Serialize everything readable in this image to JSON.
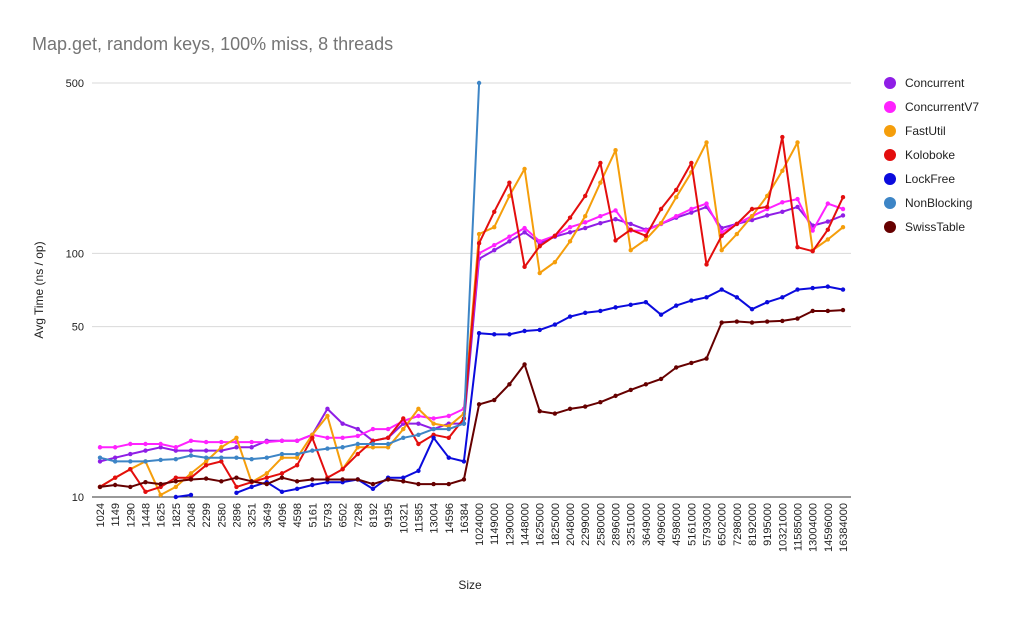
{
  "chart_data": {
    "type": "line",
    "title": "Map.get, random keys, 100% miss, 8 threads",
    "xlabel": "Size",
    "ylabel": "Avg Time (ns / op)",
    "y_scale": "log",
    "ylim": [
      10,
      500
    ],
    "y_ticks": [
      10,
      50,
      100,
      500
    ],
    "grid": "horizontal",
    "legend_position": "right",
    "categories": [
      "1024",
      "1149",
      "1290",
      "1448",
      "1625",
      "1825",
      "2048",
      "2299",
      "2580",
      "2896",
      "3251",
      "3649",
      "4096",
      "4598",
      "5161",
      "5793",
      "6502",
      "7298",
      "8192",
      "9195",
      "10321",
      "11585",
      "13004",
      "14596",
      "16384",
      "1024000",
      "1149000",
      "1290000",
      "1448000",
      "1625000",
      "1825000",
      "2048000",
      "2299000",
      "2580000",
      "2896000",
      "3251000",
      "3649000",
      "4096000",
      "4598000",
      "5161000",
      "5793000",
      "6502000",
      "7298000",
      "8192000",
      "9195000",
      "10321000",
      "11585000",
      "13004000",
      "14596000",
      "16384000"
    ],
    "series": [
      {
        "name": "Concurrent",
        "color": "#8f1ee6",
        "values": [
          14,
          14.5,
          15,
          15.5,
          16,
          15.5,
          15.5,
          15.5,
          15.5,
          16,
          16,
          17,
          17,
          17,
          18,
          23,
          20,
          19,
          17,
          17.5,
          20,
          20,
          19,
          20,
          20,
          95,
          103,
          112,
          122,
          110,
          117,
          122,
          127,
          133,
          138,
          132,
          125,
          132,
          140,
          147,
          155,
          127,
          132,
          137,
          143,
          148,
          155,
          130,
          135,
          143
        ]
      },
      {
        "name": "ConcurrentV7",
        "color": "#ff22ff",
        "values": [
          16,
          16,
          16.5,
          16.5,
          16.5,
          16,
          17,
          16.8,
          16.8,
          16.8,
          16.8,
          16.8,
          17,
          17,
          18,
          17.5,
          17.5,
          17.8,
          19,
          19,
          20.5,
          21.5,
          21,
          21.5,
          23,
          100,
          108,
          117,
          127,
          112,
          118,
          128,
          134,
          142,
          150,
          124,
          124,
          132,
          142,
          152,
          160,
          122,
          132,
          142,
          152,
          162,
          167,
          124,
          160,
          152
        ]
      },
      {
        "name": "FastUtil",
        "color": "#f59e0b",
        "values": [
          11,
          12,
          13,
          14,
          10.2,
          11,
          12.5,
          14,
          16,
          17.5,
          11.5,
          12.5,
          14.5,
          14.5,
          18,
          21.5,
          13,
          16,
          16,
          16,
          19,
          23,
          20,
          19.5,
          22,
          120,
          128,
          172,
          222,
          83,
          92,
          112,
          142,
          195,
          265,
          103,
          114,
          133,
          170,
          215,
          285,
          103,
          120,
          142,
          172,
          218,
          285,
          103,
          114,
          128
        ]
      },
      {
        "name": "Koloboke",
        "color": "#e30e0e",
        "values": [
          11,
          12,
          13,
          10.5,
          11,
          12,
          12,
          13.5,
          14,
          11,
          11.5,
          12,
          12.5,
          13.5,
          17.5,
          12,
          13,
          15,
          17,
          17.5,
          21,
          16.5,
          18,
          17.5,
          21,
          110,
          148,
          195,
          88,
          107,
          118,
          140,
          172,
          235,
          113,
          125,
          118,
          152,
          182,
          235,
          90,
          118,
          132,
          152,
          155,
          300,
          106,
          102,
          125,
          170
        ]
      },
      {
        "name": "LockFree",
        "color": "#0b0bdd",
        "values": [
          null,
          null,
          null,
          null,
          null,
          10,
          10.2,
          9.6,
          9.8,
          10.4,
          11,
          11.5,
          10.5,
          10.8,
          11.2,
          11.5,
          11.5,
          11.8,
          10.8,
          12,
          12,
          12.8,
          17.5,
          14.5,
          14,
          47,
          46.5,
          46.5,
          48,
          48.5,
          51,
          55,
          57,
          58,
          60,
          61.5,
          63,
          56,
          61,
          64,
          66,
          71,
          66,
          59,
          63,
          66,
          71,
          72,
          73,
          71
        ]
      },
      {
        "name": "NonBlocking",
        "color": "#3d85c6",
        "values": [
          14.5,
          14,
          14,
          14,
          14.2,
          14.3,
          14.8,
          14.5,
          14.5,
          14.5,
          14.3,
          14.5,
          15,
          15,
          15.5,
          15.8,
          16,
          16.5,
          16.5,
          16.5,
          17.5,
          18,
          19,
          19,
          20,
          500,
          null,
          null,
          null,
          null,
          null,
          null,
          null,
          null,
          null,
          null,
          null,
          null,
          null,
          null,
          null,
          null,
          null,
          null,
          null,
          null,
          null,
          null,
          null,
          null
        ]
      },
      {
        "name": "SwissTable",
        "color": "#660000",
        "values": [
          11,
          11.2,
          11,
          11.5,
          11.3,
          11.6,
          11.8,
          11.9,
          11.6,
          12,
          11.6,
          11.3,
          12,
          11.6,
          11.8,
          11.8,
          11.8,
          11.8,
          11.3,
          11.8,
          11.6,
          11.3,
          11.3,
          11.3,
          11.8,
          24,
          25,
          29,
          35,
          22.5,
          22,
          23,
          23.5,
          24.5,
          26,
          27.5,
          29,
          30.5,
          34,
          35.5,
          37,
          52,
          52.5,
          52,
          52.5,
          52.8,
          54,
          58,
          58,
          58.5
        ]
      }
    ]
  }
}
